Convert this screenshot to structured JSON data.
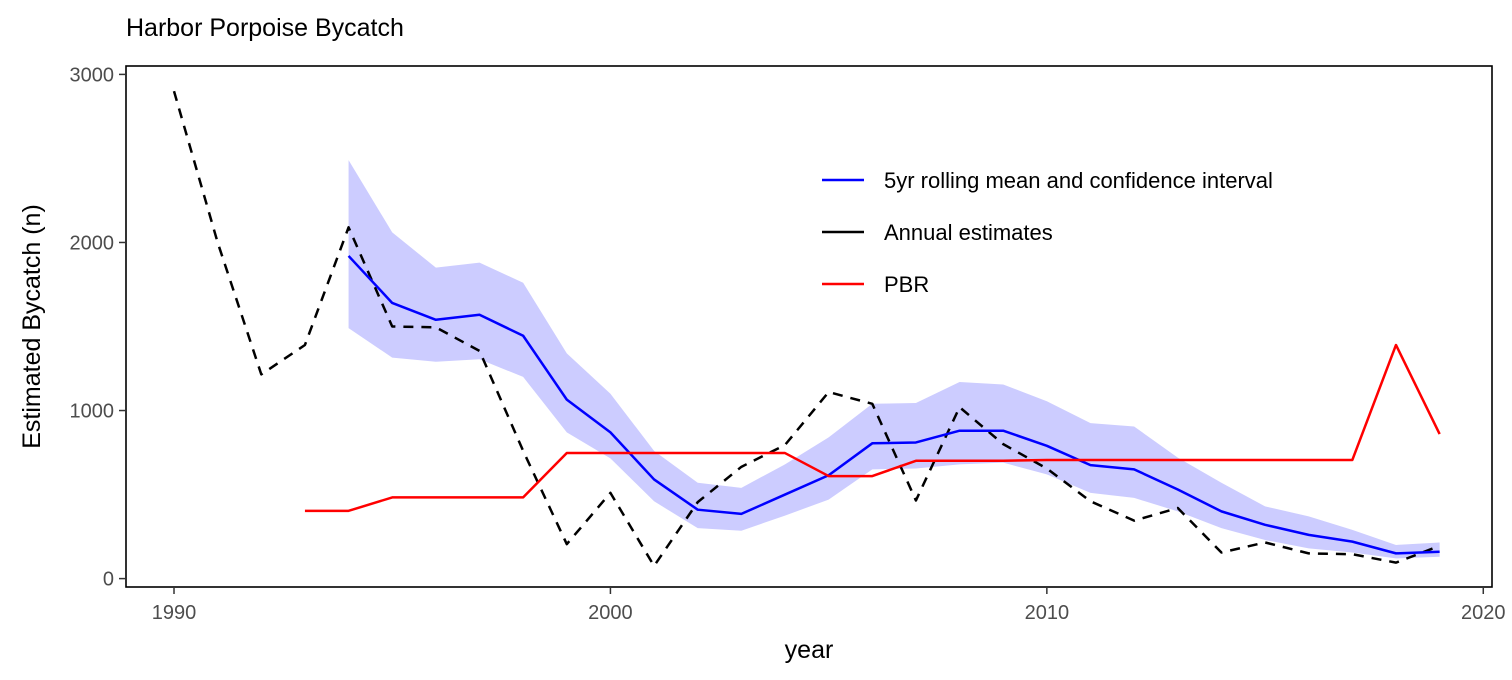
{
  "chart_data": {
    "type": "line",
    "title": "Harbor Porpoise Bycatch",
    "xlabel": "year",
    "ylabel": "Estimated Bycatch (n)",
    "xlim": [
      1988.9,
      2020.2
    ],
    "ylim": [
      -50,
      3050
    ],
    "xticks": [
      1990,
      2000,
      2010,
      2020
    ],
    "yticks": [
      0,
      1000,
      2000,
      3000
    ],
    "grid": false,
    "legend_position": "top-right inside",
    "colors": {
      "rolling_mean": "#0000ff",
      "confidence_band": "#ccccff",
      "annual": "#000000",
      "pbr": "#ff0000"
    },
    "series": [
      {
        "name": "5yr rolling mean and confidence interval",
        "style": "solid",
        "x": [
          1994,
          1995,
          1996,
          1997,
          1998,
          1999,
          2000,
          2001,
          2002,
          2003,
          2004,
          2005,
          2006,
          2007,
          2008,
          2009,
          2010,
          2011,
          2012,
          2013,
          2014,
          2015,
          2016,
          2017,
          2018,
          2019
        ],
        "values": [
          1920,
          1640,
          1540,
          1570,
          1445,
          1065,
          870,
          590,
          410,
          385,
          500,
          615,
          805,
          810,
          880,
          880,
          790,
          675,
          650,
          530,
          400,
          320,
          260,
          220,
          150,
          160
        ],
        "lower": [
          1490,
          1315,
          1290,
          1305,
          1200,
          870,
          715,
          460,
          300,
          285,
          375,
          470,
          650,
          655,
          680,
          690,
          620,
          510,
          480,
          400,
          300,
          230,
          180,
          155,
          120,
          130
        ],
        "upper": [
          2490,
          2060,
          1850,
          1880,
          1760,
          1340,
          1100,
          760,
          570,
          540,
          680,
          840,
          1040,
          1045,
          1170,
          1155,
          1055,
          925,
          905,
          720,
          570,
          430,
          370,
          290,
          200,
          215
        ]
      },
      {
        "name": "Annual estimates",
        "style": "dashed",
        "x": [
          1990,
          1991,
          1992,
          1993,
          1994,
          1995,
          1996,
          1997,
          1998,
          1999,
          2000,
          2001,
          2002,
          2003,
          2004,
          2005,
          2006,
          2007,
          2008,
          2009,
          2010,
          2011,
          2012,
          2013,
          2014,
          2015,
          2016,
          2017,
          2018,
          2019
        ],
        "values": [
          2900,
          2000,
          1215,
          1390,
          2090,
          1500,
          1495,
          1355,
          760,
          205,
          510,
          75,
          455,
          665,
          795,
          1110,
          1040,
          465,
          1020,
          800,
          655,
          460,
          345,
          420,
          155,
          215,
          150,
          145,
          95,
          195
        ]
      },
      {
        "name": "PBR",
        "style": "solid",
        "x": [
          1993,
          1994,
          1995,
          1996,
          1997,
          1998,
          1999,
          2000,
          2001,
          2002,
          2003,
          2004,
          2005,
          2006,
          2007,
          2008,
          2009,
          2010,
          2011,
          2012,
          2013,
          2014,
          2015,
          2016,
          2017,
          2018,
          2019
        ],
        "values": [
          403,
          403,
          483,
          483,
          483,
          483,
          747,
          747,
          747,
          747,
          747,
          747,
          610,
          610,
          701,
          701,
          701,
          706,
          706,
          706,
          706,
          706,
          706,
          706,
          706,
          1390,
          860
        ]
      }
    ]
  }
}
